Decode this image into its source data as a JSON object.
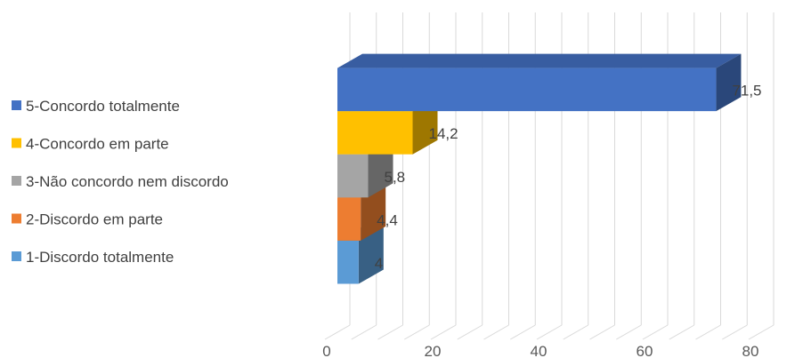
{
  "chart_data": {
    "type": "bar",
    "orientation": "horizontal",
    "three_d": true,
    "categories": [
      "1-Discordo totalmente",
      "2-Discordo em parte",
      "3-Não concordo nem discordo",
      "4-Concordo em parte",
      "5-Concordo totalmente"
    ],
    "values": [
      4,
      4.4,
      5.8,
      14.2,
      71.5
    ],
    "value_labels": [
      "4",
      "4,4",
      "5,8",
      "14,2",
      "71,5"
    ],
    "colors": [
      "#5B9BD5",
      "#ED7D31",
      "#A5A5A5",
      "#FFC000",
      "#4472C4"
    ],
    "xlim": [
      0,
      80
    ],
    "xticks": [
      0,
      20,
      40,
      60,
      80
    ],
    "xtick_labels": [
      "0",
      "20",
      "40",
      "60",
      "80"
    ],
    "grid": true,
    "legend_position": "left",
    "legend_order": [
      4,
      3,
      2,
      1,
      0
    ]
  }
}
